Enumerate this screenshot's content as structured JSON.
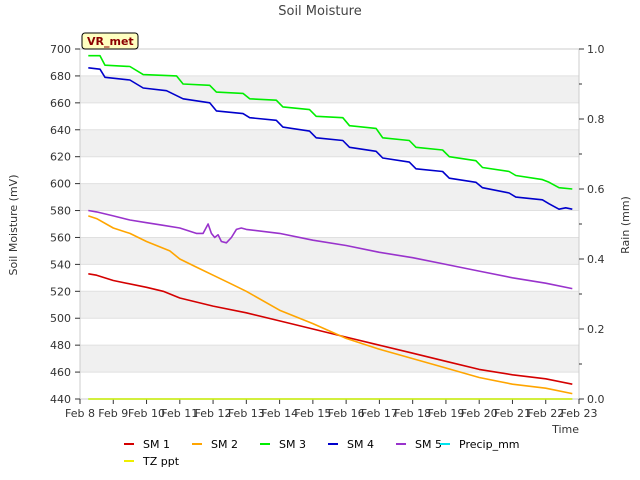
{
  "chart_data": {
    "type": "line",
    "title": "Soil Moisture",
    "xlabel": "Time",
    "ylabel": "Soil Moisture (mV)",
    "y2label": "Rain (mm)",
    "badge": "VR_met",
    "xlim": [
      8,
      23
    ],
    "ylim": [
      440,
      700
    ],
    "y2lim": [
      0.0,
      1.0
    ],
    "x_ticks": [
      8,
      9,
      10,
      11,
      12,
      13,
      14,
      15,
      16,
      17,
      18,
      19,
      20,
      21,
      22,
      23
    ],
    "x_tick_labels": [
      "Feb 8",
      "Feb 9",
      "Feb 10",
      "Feb 11",
      "Feb 12",
      "Feb 13",
      "Feb 14",
      "Feb 15",
      "Feb 16",
      "Feb 17",
      "Feb 18",
      "Feb 19",
      "Feb 20",
      "Feb 21",
      "Feb 22",
      "Feb 23"
    ],
    "y_ticks": [
      440,
      460,
      480,
      500,
      520,
      540,
      560,
      580,
      600,
      620,
      640,
      660,
      680,
      700
    ],
    "y2_ticks": [
      0.0,
      0.2,
      0.4,
      0.6,
      0.8,
      1.0
    ],
    "y2_tick_labels": [
      "0.0",
      "0.2",
      "0.4",
      "0.6",
      "0.8",
      "1.0"
    ],
    "grid": "horizontal bands",
    "legend_position": "bottom",
    "series": [
      {
        "name": "SM 1",
        "color": "#d40000",
        "axis": "left",
        "x": [
          8.25,
          8.5,
          9.0,
          10.0,
          10.5,
          11.0,
          12.0,
          13.0,
          14.0,
          15.0,
          16.0,
          17.0,
          18.0,
          19.0,
          20.0,
          21.0,
          22.0,
          22.8
        ],
        "y": [
          533,
          532,
          528,
          523,
          520,
          515,
          509,
          504,
          498,
          492,
          486,
          480,
          474,
          468,
          462,
          458,
          455,
          451
        ]
      },
      {
        "name": "SM 2",
        "color": "#ffa500",
        "axis": "left",
        "x": [
          8.25,
          8.5,
          9.0,
          9.5,
          10.0,
          10.7,
          11.0,
          11.5,
          12.0,
          12.5,
          13.0,
          14.0,
          15.0,
          16.0,
          17.0,
          18.0,
          19.0,
          20.0,
          21.0,
          22.0,
          22.8
        ],
        "y": [
          576,
          574,
          567,
          563,
          557,
          550,
          544,
          538,
          532,
          526,
          520,
          506,
          496,
          485,
          477,
          470,
          463,
          456,
          451,
          448,
          444
        ]
      },
      {
        "name": "SM 3",
        "color": "#00ee00",
        "axis": "left",
        "x": [
          8.25,
          8.6,
          8.75,
          9.5,
          9.9,
          10.9,
          11.1,
          11.9,
          12.1,
          12.9,
          13.1,
          13.9,
          14.1,
          14.9,
          15.1,
          15.9,
          16.1,
          16.9,
          17.1,
          17.9,
          18.1,
          18.9,
          19.1,
          19.9,
          20.1,
          20.9,
          21.1,
          21.9,
          22.1,
          22.4,
          22.8
        ],
        "y": [
          695,
          695,
          688,
          687,
          681,
          680,
          674,
          673,
          668,
          667,
          663,
          662,
          657,
          655,
          650,
          649,
          643,
          641,
          634,
          632,
          627,
          625,
          620,
          617,
          612,
          609,
          606,
          603,
          601,
          597,
          596
        ]
      },
      {
        "name": "SM 4",
        "color": "#0000cc",
        "axis": "left",
        "x": [
          8.25,
          8.6,
          8.75,
          9.5,
          9.9,
          10.6,
          11.1,
          11.9,
          12.1,
          12.9,
          13.1,
          13.9,
          14.1,
          14.9,
          15.1,
          15.9,
          16.1,
          16.9,
          17.1,
          17.9,
          18.1,
          18.9,
          19.1,
          19.9,
          20.1,
          20.9,
          21.1,
          21.9,
          22.1,
          22.4,
          22.6,
          22.8
        ],
        "y": [
          686,
          685,
          679,
          677,
          671,
          669,
          663,
          660,
          654,
          652,
          649,
          647,
          642,
          639,
          634,
          632,
          627,
          624,
          619,
          616,
          611,
          609,
          604,
          601,
          597,
          593,
          590,
          588,
          585,
          581,
          582,
          581
        ]
      },
      {
        "name": "SM 5",
        "color": "#9933cc",
        "axis": "left",
        "x": [
          8.25,
          8.5,
          9.0,
          9.5,
          10.0,
          10.5,
          11.0,
          11.5,
          11.7,
          11.85,
          11.95,
          12.05,
          12.15,
          12.25,
          12.4,
          12.55,
          12.7,
          12.85,
          13.0,
          14.0,
          15.0,
          16.0,
          17.0,
          18.0,
          19.0,
          20.0,
          21.0,
          22.0,
          22.8
        ],
        "y": [
          580,
          579,
          576,
          573,
          571,
          569,
          567,
          563,
          563,
          570,
          563,
          560,
          562,
          557,
          556,
          560,
          566,
          567,
          566,
          563,
          558,
          554,
          549,
          545,
          540,
          535,
          530,
          526,
          522
        ]
      },
      {
        "name": "Precip_mm",
        "color": "#00e5ee",
        "axis": "right",
        "x": [
          8.25,
          22.8
        ],
        "y": [
          0.0,
          0.0
        ]
      },
      {
        "name": "TZ ppt",
        "color": "#eeee00",
        "axis": "left",
        "x": [
          8.25,
          22.8
        ],
        "y": [
          440,
          440
        ]
      }
    ]
  }
}
